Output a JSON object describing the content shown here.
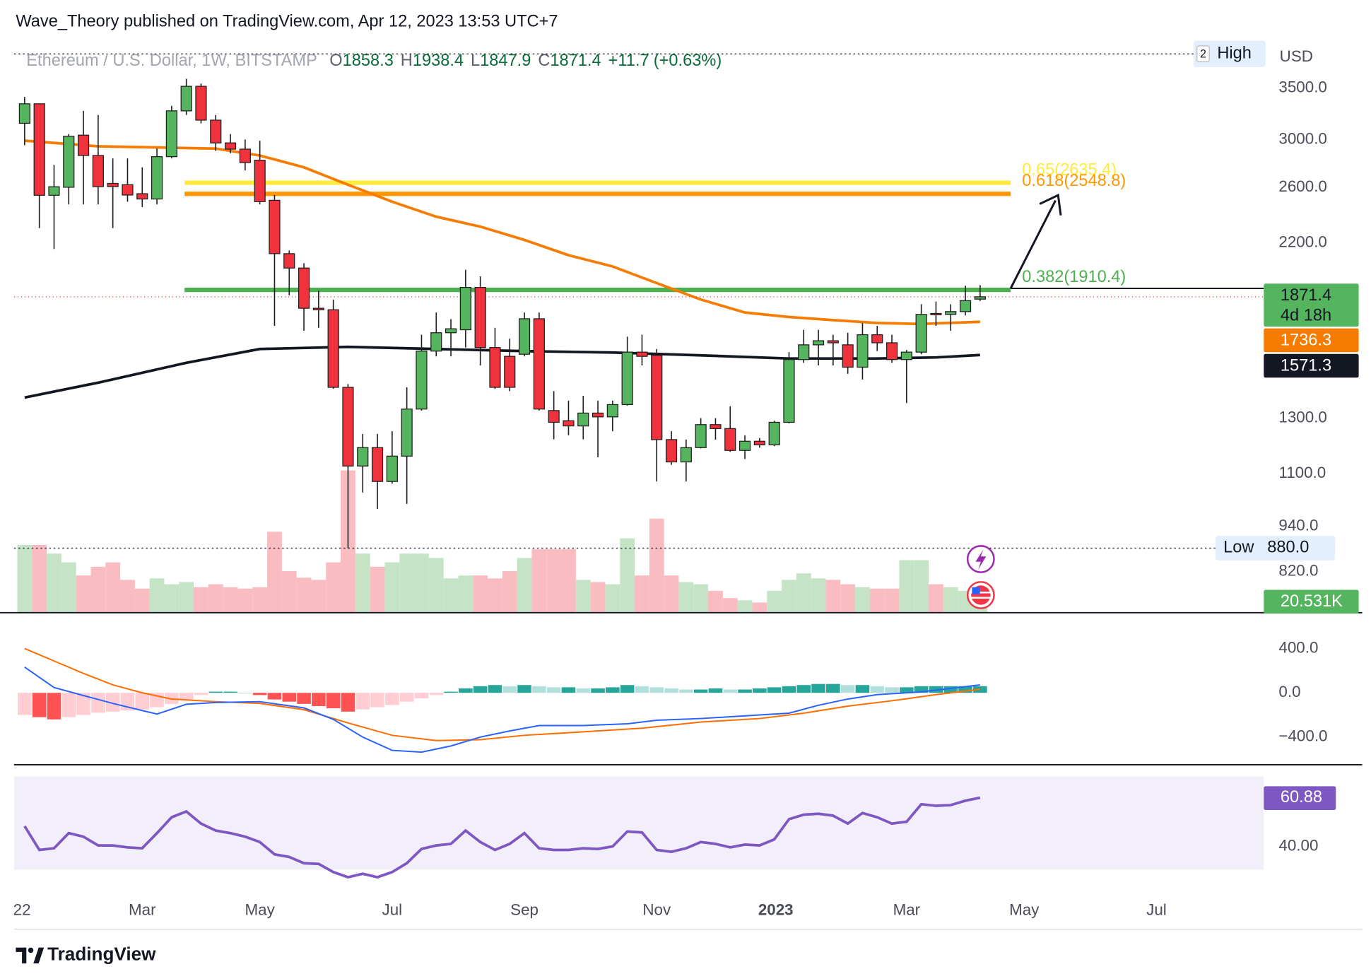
{
  "chart_data": {
    "type": "candlestick",
    "header": "Wave_Theory published on TradingView.com, Apr 12, 2023 13:53 UTC+7",
    "symbol": "Ethereum / U.S. Dollar, 1W, BITSTAMP",
    "ohlc_letters": [
      "O",
      "H",
      "L",
      "C"
    ],
    "change": {
      "value": 11.7,
      "label": "+11.7"
    },
    "change_pct": {
      "value": 0.63,
      "label": "(+0.63%)"
    },
    "currency": "USD",
    "countdown": "4d 18h",
    "brand": "TradingView",
    "xlim": [
      -0.72,
      84.3
    ],
    "xticks": [
      {
        "value": -0.18,
        "label": "22"
      },
      {
        "value": 8,
        "label": "Mar"
      },
      {
        "value": 16,
        "label": "May"
      },
      {
        "value": 25,
        "label": "Jul"
      },
      {
        "value": 34,
        "label": "Sep"
      },
      {
        "value": 43,
        "label": "Nov"
      },
      {
        "value": 51.1,
        "label": "2023"
      },
      {
        "value": 60,
        "label": "Mar"
      },
      {
        "value": 68,
        "label": "May"
      },
      {
        "value": 77,
        "label": "Jul"
      }
    ],
    "ylim": [
      725,
      4050
    ],
    "log": true,
    "grid": false,
    "yticks": [
      {
        "value": 3500,
        "label": "3500.0"
      },
      {
        "value": 3000,
        "label": "3000.0"
      },
      {
        "value": 2600,
        "label": "2600.0"
      },
      {
        "value": 2200,
        "label": "2200.0"
      },
      {
        "value": 1300,
        "label": "1300.0"
      },
      {
        "value": 1100,
        "label": "1100.0"
      },
      {
        "value": 940,
        "label": "940.0"
      },
      {
        "value": 820,
        "label": "820.0"
      }
    ],
    "up_color": "#55b55f",
    "down_color": "#f0323c",
    "open": [
      3150,
      3340,
      2538,
      2600,
      3040,
      2860,
      2630,
      2620,
      2550,
      2510,
      2850,
      3270,
      3520,
      3180,
      2970,
      2915,
      2820,
      2500,
      2130,
      2040,
      1808,
      1800,
      1426,
      1126,
      1190,
      1075,
      1160,
      1336,
      1590,
      1680,
      1695,
      1925,
      1607,
      1565,
      1575,
      1752,
      1330,
      1290,
      1270,
      1320,
      1305,
      1354,
      1585,
      1570,
      1219,
      1140,
      1190,
      1275,
      1260,
      1180,
      1213,
      1200,
      1284,
      1550,
      1620,
      1640,
      1620,
      1515,
      1670,
      1630,
      1550,
      1585,
      1780,
      1775,
      1790,
      1858.3
    ],
    "high": [
      3410,
      3340,
      2780,
      3050,
      3270,
      3230,
      2835,
      2835,
      2760,
      2920,
      3320,
      3600,
      3550,
      3230,
      3050,
      3000,
      2990,
      2540,
      2150,
      2070,
      1906,
      1856,
      1440,
      1240,
      1240,
      1250,
      1426,
      1670,
      1785,
      1750,
      2030,
      1990,
      1705,
      1650,
      1785,
      1785,
      1410,
      1370,
      1390,
      1370,
      1370,
      1660,
      1670,
      1600,
      1250,
      1219,
      1300,
      1300,
      1347,
      1235,
      1225,
      1290,
      1585,
      1695,
      1695,
      1670,
      1680,
      1730,
      1715,
      1670,
      1595,
      1830,
      1845,
      1830,
      1935,
      1938.4
    ],
    "low": [
      2950,
      2300,
      2160,
      2470,
      2470,
      2470,
      2300,
      2490,
      2450,
      2470,
      2835,
      3230,
      3150,
      2900,
      2880,
      2735,
      2470,
      1715,
      1880,
      1690,
      1705,
      1420,
      880,
      1040,
      990,
      1068,
      1005,
      1330,
      1565,
      1565,
      1607,
      1523,
      1420,
      1410,
      1565,
      1330,
      1220,
      1235,
      1220,
      1156,
      1250,
      1350,
      1523,
      1075,
      1130,
      1075,
      1187,
      1219,
      1175,
      1150,
      1190,
      1195,
      1280,
      1535,
      1523,
      1523,
      1485,
      1460,
      1590,
      1535,
      1360,
      1575,
      1715,
      1690,
      1770,
      1847.9
    ],
    "close": [
      3340,
      2538,
      2604,
      3030,
      2860,
      2605,
      2605,
      2540,
      2510,
      2850,
      3270,
      3520,
      3180,
      2970,
      2915,
      2800,
      2490,
      2130,
      2040,
      1808,
      1800,
      1426,
      1126,
      1190,
      1075,
      1160,
      1336,
      1590,
      1680,
      1700,
      1925,
      1607,
      1426,
      1426,
      1752,
      1336,
      1284,
      1270,
      1320,
      1305,
      1354,
      1585,
      1565,
      1219,
      1140,
      1190,
      1275,
      1260,
      1180,
      1213,
      1200,
      1284,
      1550,
      1620,
      1640,
      1630,
      1515,
      1670,
      1630,
      1550,
      1585,
      1775,
      1775,
      1790,
      1850,
      1871.4
    ],
    "moving_averages": [
      {
        "color": "#f57c00",
        "x": [
          0,
          5,
          13,
          16,
          19,
          22,
          25,
          28,
          31,
          34,
          37,
          40,
          43,
          46,
          49,
          52,
          55,
          58,
          61,
          65
        ],
        "values": [
          2990,
          2940,
          2920,
          2860,
          2760,
          2620,
          2490,
          2380,
          2310,
          2220,
          2120,
          2050,
          1950,
          1856,
          1785,
          1761,
          1745,
          1730,
          1725,
          1736.3
        ]
      },
      {
        "color": "#131722",
        "x": [
          0,
          5,
          11,
          16,
          22,
          28,
          34,
          40,
          46,
          52,
          58,
          62,
          65
        ],
        "values": [
          1383,
          1446,
          1535,
          1600,
          1610,
          1600,
          1590,
          1583,
          1570,
          1555,
          1555,
          1560,
          1571.3
        ]
      }
    ],
    "fib_levels": [
      {
        "label": "0.65(2635.4)",
        "value": 2635.4,
        "color": "#ffeb3b"
      },
      {
        "label": "0.618(2548.8)",
        "value": 2548.8,
        "color": "#ff9800"
      },
      {
        "label": "0.382(1910.4)",
        "value": 1910.4,
        "color": "#4caf50"
      }
    ],
    "high_marker": {
      "name": "High",
      "badge": "2",
      "value": 3880
    },
    "low_marker": {
      "name": "Low",
      "value": 880,
      "value_label": "880.0"
    },
    "volume": {
      "ylim": [
        0,
        200
      ],
      "values": [
        93,
        93,
        81,
        69,
        51,
        63,
        69,
        45,
        33,
        47,
        39,
        42,
        35,
        39,
        35,
        33,
        35,
        111,
        57,
        48,
        45,
        69,
        195,
        81,
        63,
        69,
        81,
        81,
        75,
        47,
        51,
        51,
        47,
        57,
        75,
        87,
        87,
        87,
        45,
        42,
        39,
        102,
        51,
        129,
        51,
        42,
        39,
        30,
        20,
        17,
        14,
        30,
        45,
        54,
        47,
        45,
        39,
        35,
        33,
        33,
        72,
        72,
        39,
        35,
        30,
        20.531
      ],
      "last_label": "20.531K",
      "up_color": "#c5e4c6",
      "down_color": "#f9bcc1"
    },
    "macd": {
      "ylim": [
        -650,
        700
      ],
      "yticks": [
        {
          "value": 400,
          "label": "400.0"
        },
        {
          "value": 0,
          "label": "0.0"
        },
        {
          "value": -400,
          "label": "−400.0"
        }
      ],
      "histogram": [
        -200,
        -220,
        -240,
        -220,
        -200,
        -180,
        -170,
        -160,
        -150,
        -130,
        -100,
        -60,
        -20,
        10,
        10,
        0,
        -20,
        -60,
        -80,
        -100,
        -120,
        -140,
        -170,
        -150,
        -130,
        -110,
        -80,
        -50,
        -20,
        10,
        40,
        60,
        70,
        60,
        70,
        60,
        50,
        50,
        40,
        40,
        50,
        70,
        60,
        50,
        40,
        30,
        30,
        40,
        30,
        30,
        40,
        50,
        60,
        70,
        80,
        80,
        70,
        70,
        60,
        50,
        50,
        60,
        60,
        60,
        60,
        60
      ],
      "histogram_colors": {
        "up_rising": "#26a69a",
        "up_falling": "#b2dfdb",
        "down_falling": "#ff5252",
        "down_rising": "#ffcdd2"
      },
      "macd": {
        "color": "#2962ff",
        "x": [
          0,
          2,
          4,
          6,
          8,
          9,
          11,
          13,
          16,
          19,
          21,
          23,
          25,
          27,
          29,
          31,
          33,
          35,
          38,
          41,
          43,
          46,
          50,
          52,
          54,
          56,
          58,
          61,
          63,
          65
        ],
        "values": [
          232,
          48,
          -24,
          -96,
          -160,
          -192,
          -104,
          -88,
          -80,
          -136,
          -240,
          -400,
          -520,
          -536,
          -480,
          -400,
          -344,
          -296,
          -296,
          -280,
          -248,
          -232,
          -200,
          -184,
          -112,
          -56,
          -16,
          8,
          40,
          72
        ]
      },
      "signal": {
        "color": "#ff6d00",
        "x": [
          0,
          2,
          4,
          6,
          8,
          10,
          13,
          16,
          19,
          22,
          25,
          28,
          31,
          34,
          38,
          42,
          46,
          50,
          53,
          56,
          59,
          62,
          65
        ],
        "values": [
          400,
          288,
          176,
          72,
          0,
          -56,
          -80,
          -96,
          -152,
          -272,
          -384,
          -432,
          -424,
          -384,
          -352,
          -320,
          -264,
          -232,
          -184,
          -120,
          -72,
          -16,
          32
        ]
      }
    },
    "rsi": {
      "ylim": [
        20,
        75
      ],
      "band": [
        30,
        70
      ],
      "yticks": [
        {
          "value": 40,
          "label": "40.00"
        }
      ],
      "color": "#7e57c2",
      "values": [
        48.7,
        38.5,
        39.2,
        45.7,
        44.2,
        40.4,
        40.4,
        39.6,
        39.2,
        45.7,
        52.5,
        55,
        49.8,
        46.8,
        45.7,
        44.2,
        41.9,
        36.6,
        35.5,
        32.8,
        32.5,
        29,
        26.8,
        28.3,
        26.8,
        29,
        32.8,
        38.9,
        40.4,
        41.1,
        46.8,
        41.9,
        38.5,
        41.1,
        45.7,
        39.2,
        38.5,
        38.5,
        39.2,
        38.9,
        40,
        46.4,
        46,
        38.5,
        37.7,
        39.2,
        41.9,
        41.1,
        39.6,
        40.8,
        40.4,
        43,
        51.7,
        53.6,
        54,
        53.2,
        49.8,
        54.3,
        52.5,
        49.8,
        50.6,
        58.1,
        57.4,
        57.7,
        59.6,
        60.88
      ]
    }
  }
}
